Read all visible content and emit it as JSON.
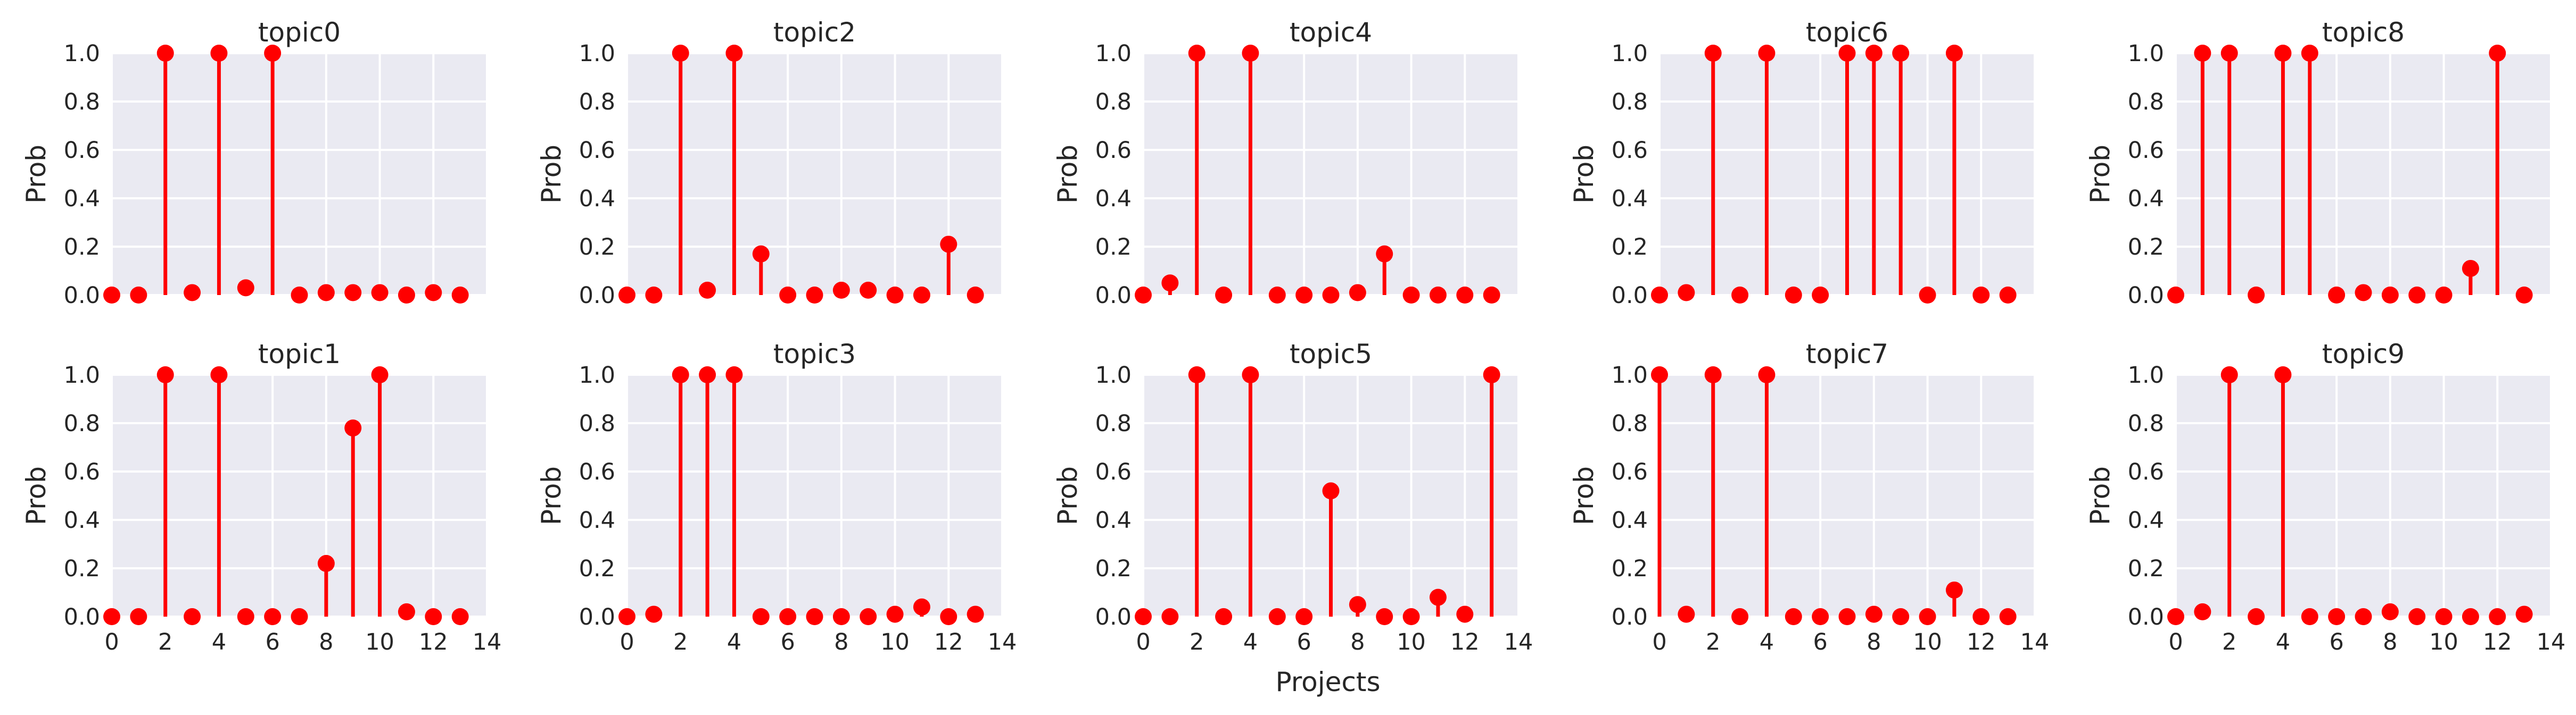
{
  "figure": {
    "xlabel": "Projects",
    "ylabel": "Prob",
    "background": "#EAEAF2",
    "grid_color": "#FFFFFF",
    "stem_color": "#FF0000",
    "text_color": "#262626"
  },
  "chart_data": [
    {
      "type": "stem",
      "title": "topic0",
      "ylabel": "Prob",
      "x": [
        0,
        1,
        2,
        3,
        4,
        5,
        6,
        7,
        8,
        9,
        10,
        11,
        12,
        13
      ],
      "values": [
        0.0,
        0.0,
        1.0,
        0.01,
        1.0,
        0.03,
        1.0,
        0.0,
        0.01,
        0.01,
        0.01,
        0.0,
        0.01,
        0.0
      ],
      "xlim": [
        0,
        14
      ],
      "ylim": [
        0,
        1
      ],
      "xticks": [
        0,
        2,
        4,
        6,
        8,
        10,
        12,
        14
      ],
      "yticks": [
        0.0,
        0.2,
        0.4,
        0.6,
        0.8,
        1.0
      ],
      "grid": true
    },
    {
      "type": "stem",
      "title": "topic2",
      "ylabel": "Prob",
      "x": [
        0,
        1,
        2,
        3,
        4,
        5,
        6,
        7,
        8,
        9,
        10,
        11,
        12,
        13
      ],
      "values": [
        0.0,
        0.0,
        1.0,
        0.02,
        1.0,
        0.17,
        0.0,
        0.0,
        0.02,
        0.02,
        0.0,
        0.0,
        0.21,
        0.0
      ],
      "xlim": [
        0,
        14
      ],
      "ylim": [
        0,
        1
      ],
      "xticks": [
        0,
        2,
        4,
        6,
        8,
        10,
        12,
        14
      ],
      "yticks": [
        0.0,
        0.2,
        0.4,
        0.6,
        0.8,
        1.0
      ],
      "grid": true
    },
    {
      "type": "stem",
      "title": "topic4",
      "ylabel": "Prob",
      "x": [
        0,
        1,
        2,
        3,
        4,
        5,
        6,
        7,
        8,
        9,
        10,
        11,
        12,
        13
      ],
      "values": [
        0.0,
        0.05,
        1.0,
        0.0,
        1.0,
        0.0,
        0.0,
        0.0,
        0.01,
        0.17,
        0.0,
        0.0,
        0.0,
        0.0
      ],
      "xlim": [
        0,
        14
      ],
      "ylim": [
        0,
        1
      ],
      "xticks": [
        0,
        2,
        4,
        6,
        8,
        10,
        12,
        14
      ],
      "yticks": [
        0.0,
        0.2,
        0.4,
        0.6,
        0.8,
        1.0
      ],
      "grid": true
    },
    {
      "type": "stem",
      "title": "topic6",
      "ylabel": "Prob",
      "x": [
        0,
        1,
        2,
        3,
        4,
        5,
        6,
        7,
        8,
        9,
        10,
        11,
        12,
        13
      ],
      "values": [
        0.0,
        0.01,
        1.0,
        0.0,
        1.0,
        0.0,
        0.0,
        1.0,
        1.0,
        1.0,
        0.0,
        1.0,
        0.0,
        0.0
      ],
      "xlim": [
        0,
        14
      ],
      "ylim": [
        0,
        1
      ],
      "xticks": [
        0,
        2,
        4,
        6,
        8,
        10,
        12,
        14
      ],
      "yticks": [
        0.0,
        0.2,
        0.4,
        0.6,
        0.8,
        1.0
      ],
      "grid": true
    },
    {
      "type": "stem",
      "title": "topic8",
      "ylabel": "Prob",
      "x": [
        0,
        1,
        2,
        3,
        4,
        5,
        6,
        7,
        8,
        9,
        10,
        11,
        12,
        13
      ],
      "values": [
        0.0,
        1.0,
        1.0,
        0.0,
        1.0,
        1.0,
        0.0,
        0.01,
        0.0,
        0.0,
        0.0,
        0.11,
        1.0,
        0.0
      ],
      "xlim": [
        0,
        14
      ],
      "ylim": [
        0,
        1
      ],
      "xticks": [
        0,
        2,
        4,
        6,
        8,
        10,
        12,
        14
      ],
      "yticks": [
        0.0,
        0.2,
        0.4,
        0.6,
        0.8,
        1.0
      ],
      "grid": true
    },
    {
      "type": "stem",
      "title": "topic1",
      "ylabel": "Prob",
      "x": [
        0,
        1,
        2,
        3,
        4,
        5,
        6,
        7,
        8,
        9,
        10,
        11,
        12,
        13
      ],
      "values": [
        0.0,
        0.0,
        1.0,
        0.0,
        1.0,
        0.0,
        0.0,
        0.0,
        0.22,
        0.78,
        1.0,
        0.02,
        0.0,
        0.0
      ],
      "xlim": [
        0,
        14
      ],
      "ylim": [
        0,
        1
      ],
      "xticks": [
        0,
        2,
        4,
        6,
        8,
        10,
        12,
        14
      ],
      "yticks": [
        0.0,
        0.2,
        0.4,
        0.6,
        0.8,
        1.0
      ],
      "grid": true
    },
    {
      "type": "stem",
      "title": "topic3",
      "ylabel": "Prob",
      "x": [
        0,
        1,
        2,
        3,
        4,
        5,
        6,
        7,
        8,
        9,
        10,
        11,
        12,
        13
      ],
      "values": [
        0.0,
        0.01,
        1.0,
        1.0,
        1.0,
        0.0,
        0.0,
        0.0,
        0.0,
        0.0,
        0.01,
        0.04,
        0.0,
        0.01
      ],
      "xlim": [
        0,
        14
      ],
      "ylim": [
        0,
        1
      ],
      "xticks": [
        0,
        2,
        4,
        6,
        8,
        10,
        12,
        14
      ],
      "yticks": [
        0.0,
        0.2,
        0.4,
        0.6,
        0.8,
        1.0
      ],
      "grid": true
    },
    {
      "type": "stem",
      "title": "topic5",
      "ylabel": "Prob",
      "x": [
        0,
        1,
        2,
        3,
        4,
        5,
        6,
        7,
        8,
        9,
        10,
        11,
        12,
        13
      ],
      "values": [
        0.0,
        0.0,
        1.0,
        0.0,
        1.0,
        0.0,
        0.0,
        0.52,
        0.05,
        0.0,
        0.0,
        0.08,
        0.01,
        1.0
      ],
      "xlim": [
        0,
        14
      ],
      "ylim": [
        0,
        1
      ],
      "xticks": [
        0,
        2,
        4,
        6,
        8,
        10,
        12,
        14
      ],
      "yticks": [
        0.0,
        0.2,
        0.4,
        0.6,
        0.8,
        1.0
      ],
      "grid": true
    },
    {
      "type": "stem",
      "title": "topic7",
      "ylabel": "Prob",
      "x": [
        0,
        1,
        2,
        3,
        4,
        5,
        6,
        7,
        8,
        9,
        10,
        11,
        12,
        13
      ],
      "values": [
        1.0,
        0.01,
        1.0,
        0.0,
        1.0,
        0.0,
        0.0,
        0.0,
        0.01,
        0.0,
        0.0,
        0.11,
        0.0,
        0.0
      ],
      "xlim": [
        0,
        14
      ],
      "ylim": [
        0,
        1
      ],
      "xticks": [
        0,
        2,
        4,
        6,
        8,
        10,
        12,
        14
      ],
      "yticks": [
        0.0,
        0.2,
        0.4,
        0.6,
        0.8,
        1.0
      ],
      "grid": true
    },
    {
      "type": "stem",
      "title": "topic9",
      "ylabel": "Prob",
      "x": [
        0,
        1,
        2,
        3,
        4,
        5,
        6,
        7,
        8,
        9,
        10,
        11,
        12,
        13
      ],
      "values": [
        0.0,
        0.02,
        1.0,
        0.0,
        1.0,
        0.0,
        0.0,
        0.0,
        0.02,
        0.0,
        0.0,
        0.0,
        0.0,
        0.01
      ],
      "xlim": [
        0,
        14
      ],
      "ylim": [
        0,
        1
      ],
      "xticks": [
        0,
        2,
        4,
        6,
        8,
        10,
        12,
        14
      ],
      "yticks": [
        0.0,
        0.2,
        0.4,
        0.6,
        0.8,
        1.0
      ],
      "grid": true
    }
  ]
}
